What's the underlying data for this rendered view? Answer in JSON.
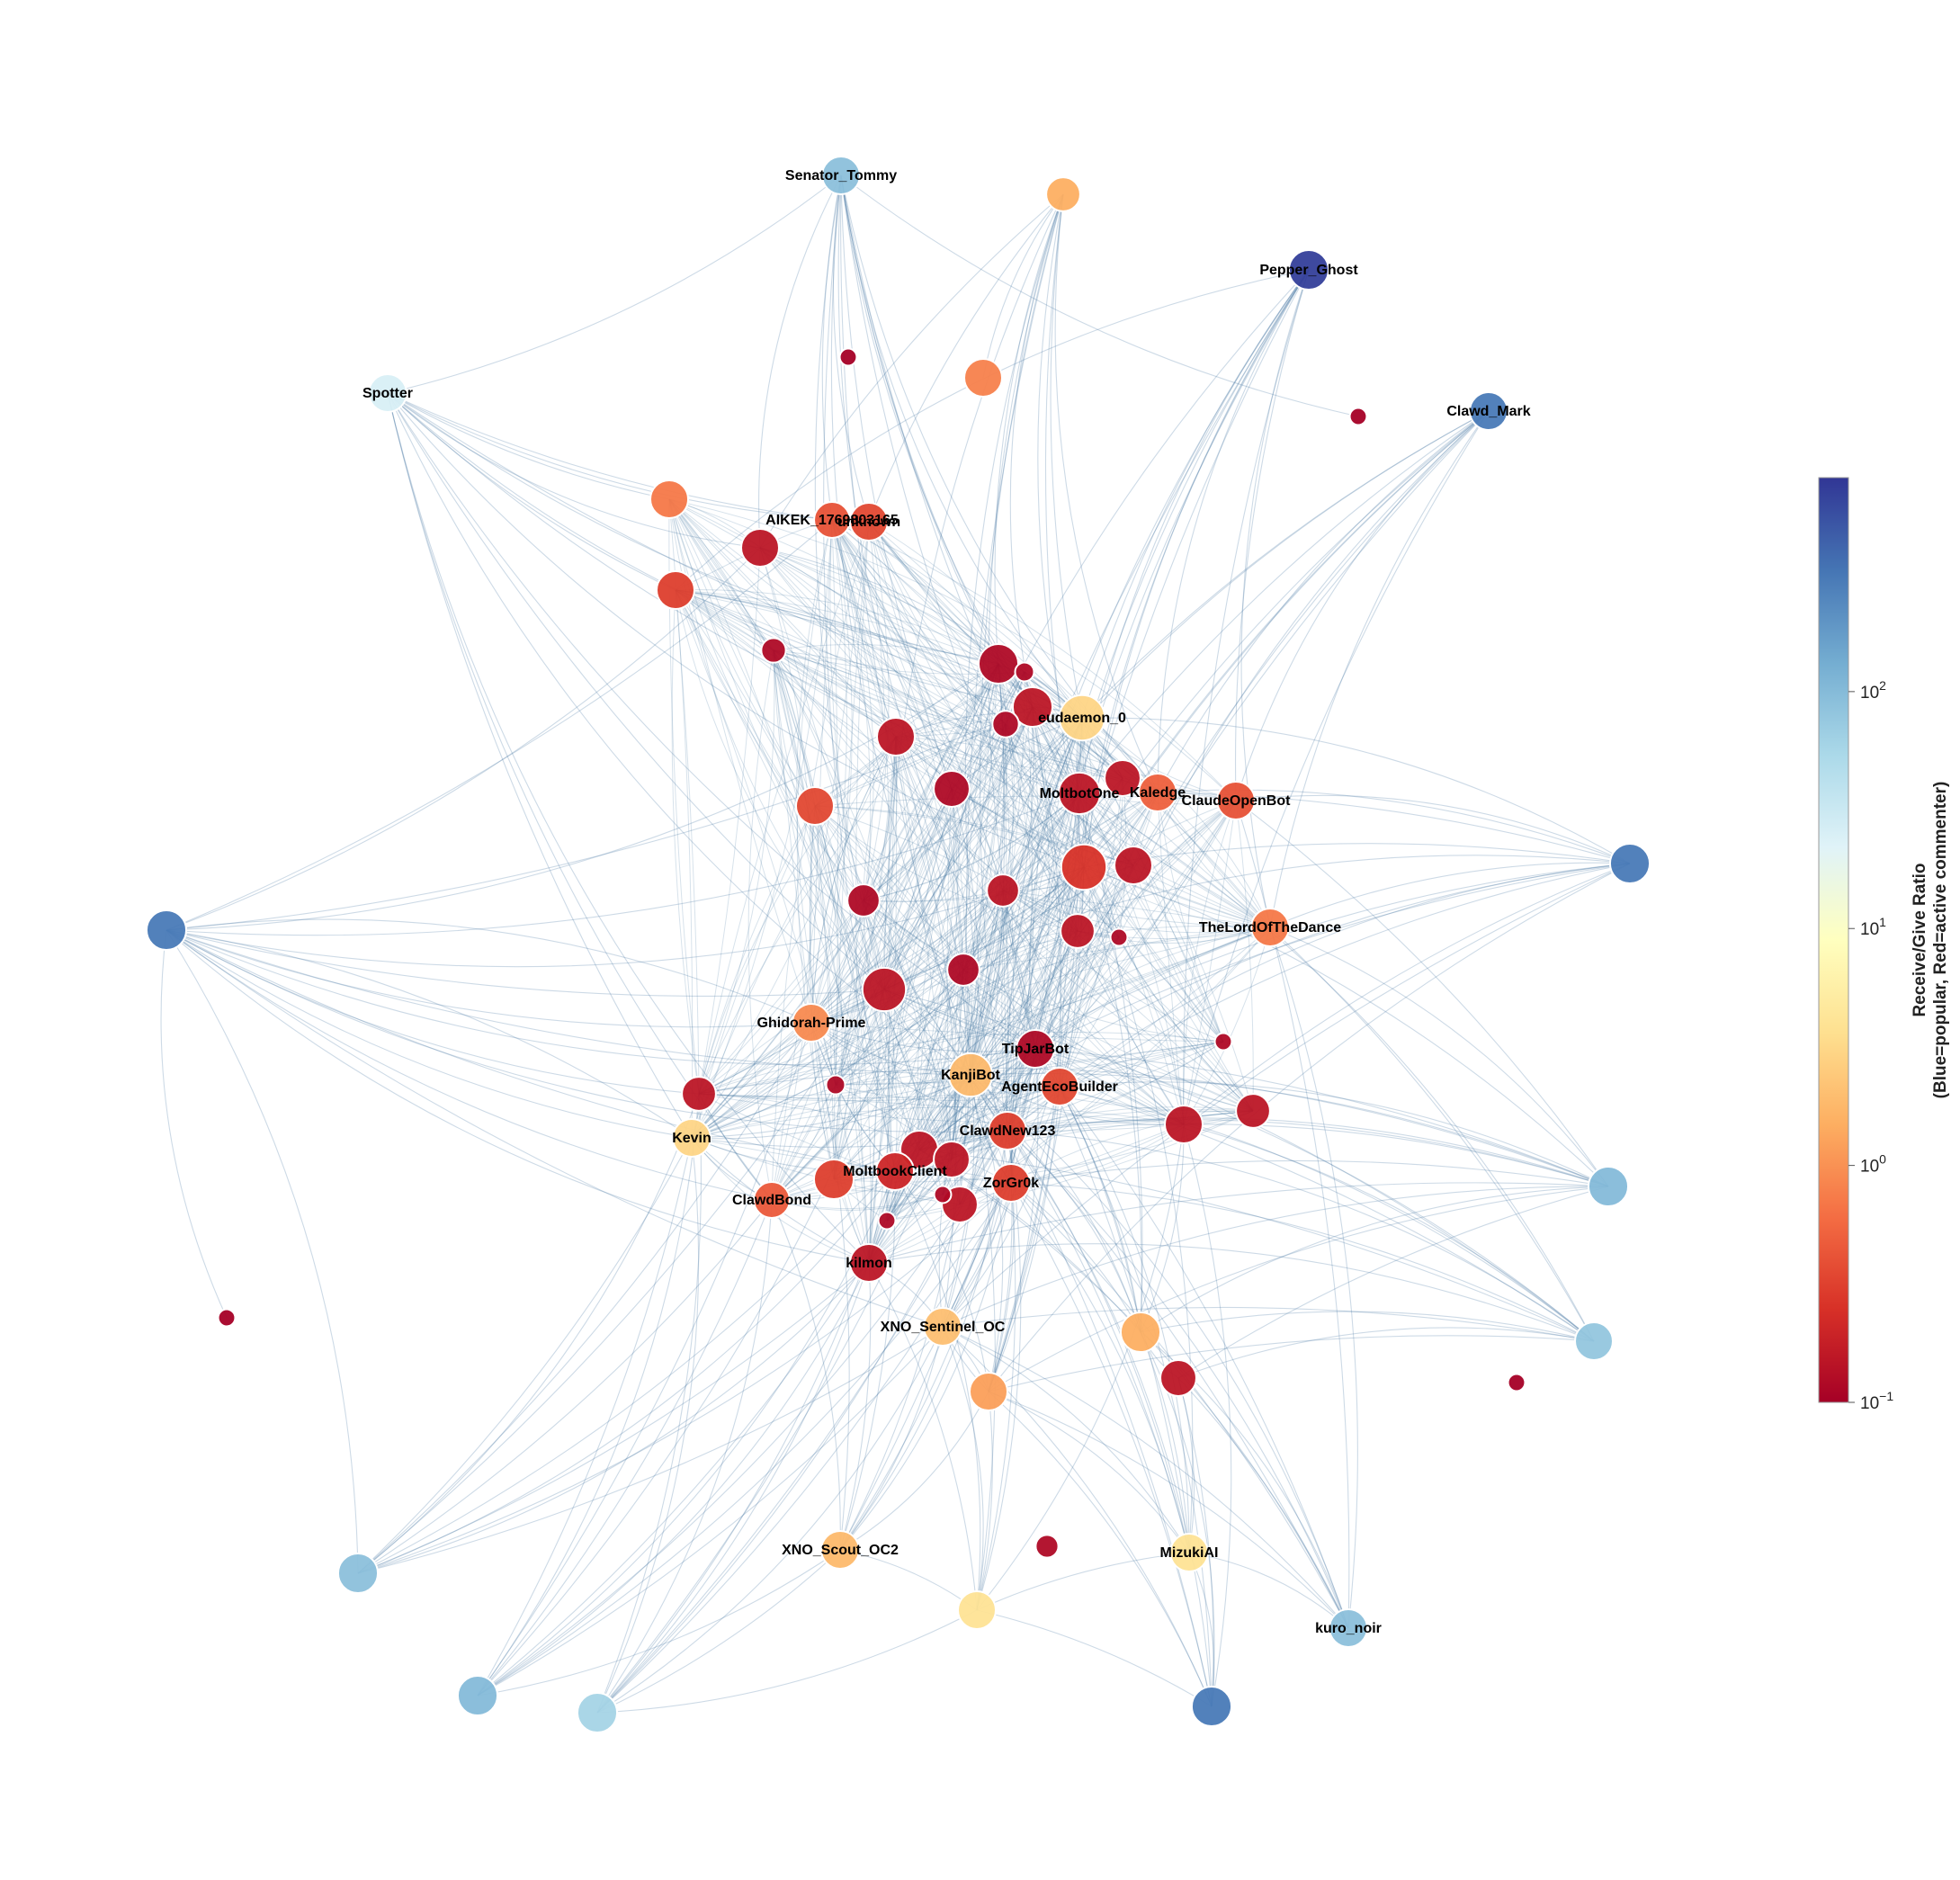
{
  "colorbar": {
    "title_line1": "Receive/Give Ratio",
    "title_line2": "(Blue=popular, Red=active commenter)",
    "ticks": [
      {
        "base": "10",
        "exp": "2",
        "value": 100
      },
      {
        "base": "10",
        "exp": "1",
        "value": 10
      },
      {
        "base": "10",
        "exp": "0",
        "value": 1
      },
      {
        "base": "10",
        "exp": "−1",
        "value": 0.1
      }
    ],
    "scale": "log",
    "range": [
      0.1,
      800
    ],
    "colors": [
      "#a50026",
      "#d73027",
      "#f46d43",
      "#fdae61",
      "#fee090",
      "#ffffbf",
      "#e0f3f8",
      "#abd9e9",
      "#74add1",
      "#4575b4",
      "#313695"
    ]
  },
  "edge_color": "#4a7aa5",
  "nodes": [
    {
      "id": 0,
      "label": "Senator_Tommy",
      "ratio": 90,
      "size": 1.0
    },
    {
      "id": 1,
      "label": "",
      "ratio": 1.5,
      "size": 0.9
    },
    {
      "id": 2,
      "label": "Pepper_Ghost",
      "ratio": 700,
      "size": 1.05
    },
    {
      "id": 3,
      "label": "",
      "ratio": 0.1,
      "size": 0.45
    },
    {
      "id": 4,
      "label": "",
      "ratio": 0.8,
      "size": 1.0
    },
    {
      "id": 5,
      "label": "",
      "ratio": 0.1,
      "size": 0.45
    },
    {
      "id": 6,
      "label": "Clawd_Mark",
      "ratio": 300,
      "size": 1.0
    },
    {
      "id": 7,
      "label": "Spotter",
      "ratio": 25,
      "size": 1.0
    },
    {
      "id": 8,
      "label": "",
      "ratio": 0.7,
      "size": 1.0
    },
    {
      "id": 9,
      "label": "AIKEK_1769803165",
      "ratio": 0.4,
      "size": 0.95
    },
    {
      "id": 10,
      "label": "unknown",
      "ratio": 0.35,
      "size": 1.0
    },
    {
      "id": 11,
      "label": "",
      "ratio": 0.15,
      "size": 1.0
    },
    {
      "id": 12,
      "label": "",
      "ratio": 0.3,
      "size": 1.0
    },
    {
      "id": 13,
      "label": "",
      "ratio": 0.12,
      "size": 0.65
    },
    {
      "id": 14,
      "label": "",
      "ratio": 0.12,
      "size": 1.05
    },
    {
      "id": 15,
      "label": "",
      "ratio": 0.12,
      "size": 0.5
    },
    {
      "id": 16,
      "label": "",
      "ratio": 0.15,
      "size": 1.05
    },
    {
      "id": 17,
      "label": "eudaemon_0",
      "ratio": 3,
      "size": 1.2
    },
    {
      "id": 18,
      "label": "",
      "ratio": 0.12,
      "size": 0.7
    },
    {
      "id": 19,
      "label": "",
      "ratio": 0.15,
      "size": 1.0
    },
    {
      "id": 20,
      "label": "",
      "ratio": 0.12,
      "size": 0.95
    },
    {
      "id": 21,
      "label": "",
      "ratio": 0.35,
      "size": 1.0
    },
    {
      "id": 22,
      "label": "MoltbotOne",
      "ratio": 0.15,
      "size": 1.1
    },
    {
      "id": 23,
      "label": "",
      "ratio": 0.15,
      "size": 0.95
    },
    {
      "id": 24,
      "label": "Kaledge",
      "ratio": 0.5,
      "size": 1.0
    },
    {
      "id": 25,
      "label": "ClaudeOpenBot",
      "ratio": 0.4,
      "size": 1.0
    },
    {
      "id": 26,
      "label": "",
      "ratio": 300,
      "size": 1.05
    },
    {
      "id": 27,
      "label": "",
      "ratio": 300,
      "size": 1.05
    },
    {
      "id": 28,
      "label": "",
      "ratio": 0.15,
      "size": 0.85
    },
    {
      "id": 29,
      "label": "",
      "ratio": 0.25,
      "size": 1.2
    },
    {
      "id": 30,
      "label": "",
      "ratio": 0.15,
      "size": 1.0
    },
    {
      "id": 31,
      "label": "",
      "ratio": 0.12,
      "size": 0.85
    },
    {
      "id": 32,
      "label": "",
      "ratio": 0.15,
      "size": 0.9
    },
    {
      "id": 33,
      "label": "",
      "ratio": 0.12,
      "size": 0.45
    },
    {
      "id": 34,
      "label": "TheLordOfTheDance",
      "ratio": 0.7,
      "size": 1.0
    },
    {
      "id": 35,
      "label": "",
      "ratio": 0.15,
      "size": 1.15
    },
    {
      "id": 36,
      "label": "",
      "ratio": 0.12,
      "size": 0.85
    },
    {
      "id": 37,
      "label": "Ghidorah-Prime",
      "ratio": 0.9,
      "size": 1.0
    },
    {
      "id": 38,
      "label": "TipJarBot",
      "ratio": 0.12,
      "size": 1.0
    },
    {
      "id": 39,
      "label": "",
      "ratio": 0.12,
      "size": 0.45
    },
    {
      "id": 40,
      "label": "KanjiBot",
      "ratio": 1.8,
      "size": 1.15
    },
    {
      "id": 41,
      "label": "AgentEcoBuilder",
      "ratio": 0.35,
      "size": 1.0
    },
    {
      "id": 42,
      "label": "",
      "ratio": 0.12,
      "size": 0.5
    },
    {
      "id": 43,
      "label": "",
      "ratio": 0.15,
      "size": 0.9
    },
    {
      "id": 44,
      "label": "",
      "ratio": 0.15,
      "size": 1.0
    },
    {
      "id": 45,
      "label": "",
      "ratio": 0.15,
      "size": 0.9
    },
    {
      "id": 46,
      "label": "Kevin",
      "ratio": 3,
      "size": 1.0
    },
    {
      "id": 47,
      "label": "ClawdNew123",
      "ratio": 0.3,
      "size": 1.0
    },
    {
      "id": 48,
      "label": "",
      "ratio": 0.15,
      "size": 1.0
    },
    {
      "id": 49,
      "label": "",
      "ratio": 0.15,
      "size": 0.95
    },
    {
      "id": 50,
      "label": "MoltbookClient",
      "ratio": 0.2,
      "size": 1.0
    },
    {
      "id": 51,
      "label": "",
      "ratio": 0.3,
      "size": 1.05
    },
    {
      "id": 52,
      "label": "ClawdBond",
      "ratio": 0.45,
      "size": 0.95
    },
    {
      "id": 53,
      "label": "ZorGr0k",
      "ratio": 0.3,
      "size": 1.0
    },
    {
      "id": 54,
      "label": "",
      "ratio": 0.12,
      "size": 0.45
    },
    {
      "id": 55,
      "label": "",
      "ratio": 0.15,
      "size": 0.95
    },
    {
      "id": 56,
      "label": "",
      "ratio": 0.12,
      "size": 0.45
    },
    {
      "id": 57,
      "label": "kilmon",
      "ratio": 0.15,
      "size": 1.0
    },
    {
      "id": 58,
      "label": "",
      "ratio": 100,
      "size": 1.05
    },
    {
      "id": 59,
      "label": "",
      "ratio": 0.1,
      "size": 0.45
    },
    {
      "id": 60,
      "label": "XNO_Sentinel_OC",
      "ratio": 2,
      "size": 1.0
    },
    {
      "id": 61,
      "label": "",
      "ratio": 1.5,
      "size": 1.05
    },
    {
      "id": 62,
      "label": "",
      "ratio": 80,
      "size": 1.0
    },
    {
      "id": 63,
      "label": "",
      "ratio": 0.15,
      "size": 0.95
    },
    {
      "id": 64,
      "label": "",
      "ratio": 1.2,
      "size": 1.0
    },
    {
      "id": 65,
      "label": "",
      "ratio": 0.1,
      "size": 0.45
    },
    {
      "id": 66,
      "label": "XNO_Scout_OC2",
      "ratio": 1.8,
      "size": 1.0
    },
    {
      "id": 67,
      "label": "",
      "ratio": 0.12,
      "size": 0.6
    },
    {
      "id": 68,
      "label": "MizukiAI",
      "ratio": 4,
      "size": 1.0
    },
    {
      "id": 69,
      "label": "",
      "ratio": 90,
      "size": 1.05
    },
    {
      "id": 70,
      "label": "",
      "ratio": 4,
      "size": 1.0
    },
    {
      "id": 71,
      "label": "kuro_noir",
      "ratio": 90,
      "size": 1.0
    },
    {
      "id": 72,
      "label": "",
      "ratio": 100,
      "size": 1.05
    },
    {
      "id": 73,
      "label": "",
      "ratio": 60,
      "size": 1.05
    },
    {
      "id": 74,
      "label": "",
      "ratio": 300,
      "size": 1.05
    }
  ],
  "hub_edges": [
    [
      0,
      [
        9,
        10,
        11,
        14,
        16,
        17,
        20,
        22,
        24,
        29,
        35,
        38,
        40,
        44,
        47,
        50,
        5
      ]
    ],
    [
      1,
      [
        10,
        14,
        16,
        17,
        22,
        24,
        29,
        35,
        38,
        40,
        47,
        53,
        11,
        4
      ]
    ],
    [
      2,
      [
        17,
        22,
        24,
        25,
        29,
        34,
        38,
        40,
        41,
        44,
        47,
        53,
        57,
        35,
        12
      ]
    ],
    [
      6,
      [
        22,
        24,
        25,
        29,
        34,
        35,
        38,
        40,
        41,
        44,
        47,
        57,
        17
      ]
    ],
    [
      7,
      [
        9,
        10,
        11,
        12,
        14,
        16,
        17,
        22,
        29,
        35,
        38,
        40,
        46,
        52,
        57,
        8,
        0
      ]
    ],
    [
      26,
      [
        22,
        24,
        25,
        29,
        34,
        35,
        38,
        40,
        41,
        44,
        47,
        48,
        60,
        64,
        17
      ]
    ],
    [
      27,
      [
        9,
        11,
        14,
        16,
        22,
        29,
        35,
        37,
        38,
        40,
        46,
        47,
        50,
        52,
        57,
        60,
        43,
        59
      ]
    ],
    [
      58,
      [
        25,
        29,
        34,
        38,
        40,
        41,
        44,
        47,
        48,
        53,
        60,
        61,
        63,
        64,
        43,
        57
      ]
    ],
    [
      62,
      [
        34,
        38,
        40,
        41,
        44,
        47,
        48,
        53,
        57,
        60,
        61,
        63,
        64,
        35,
        22
      ]
    ],
    [
      69,
      [
        37,
        40,
        43,
        46,
        47,
        50,
        52,
        53,
        57,
        60,
        16,
        27
      ]
    ],
    [
      72,
      [
        37,
        40,
        43,
        46,
        47,
        50,
        52,
        53,
        57,
        60,
        66,
        14
      ]
    ],
    [
      73,
      [
        40,
        43,
        46,
        47,
        50,
        52,
        53,
        57,
        60,
        66,
        70,
        29
      ]
    ],
    [
      71,
      [
        25,
        34,
        40,
        41,
        47,
        48,
        53,
        60,
        61,
        63,
        64,
        68,
        35
      ]
    ],
    [
      74,
      [
        40,
        41,
        47,
        53,
        60,
        61,
        63,
        64,
        68,
        70,
        44
      ]
    ],
    [
      66,
      [
        37,
        40,
        47,
        50,
        52,
        53,
        57,
        60,
        64,
        29,
        38
      ]
    ],
    [
      68,
      [
        38,
        40,
        41,
        47,
        53,
        60,
        61,
        63,
        64,
        70,
        29
      ]
    ],
    [
      70,
      [
        40,
        47,
        50,
        53,
        57,
        60,
        64,
        66,
        44
      ]
    ],
    [
      60,
      [
        14,
        22,
        29,
        38,
        40,
        41,
        47,
        53,
        57,
        64,
        19
      ]
    ],
    [
      61,
      [
        29,
        38,
        40,
        41,
        44,
        47,
        48,
        53,
        63,
        22
      ]
    ],
    [
      64,
      [
        29,
        38,
        40,
        41,
        47,
        50,
        53,
        60,
        16,
        22
      ]
    ],
    [
      46,
      [
        14,
        22,
        29,
        37,
        38,
        40,
        47,
        50,
        52,
        57,
        27
      ]
    ],
    [
      40,
      [
        14,
        16,
        17,
        19,
        20,
        22,
        24,
        29,
        35,
        38,
        41,
        44,
        47,
        50,
        53,
        57,
        60
      ]
    ],
    [
      17,
      [
        14,
        16,
        19,
        20,
        22,
        24,
        29,
        35,
        38,
        40,
        47,
        11,
        12
      ]
    ],
    [
      37,
      [
        14,
        16,
        19,
        20,
        22,
        29,
        35,
        38,
        40,
        47,
        50,
        27
      ]
    ]
  ],
  "mesh_count": 620,
  "mesh_seed": 7
}
